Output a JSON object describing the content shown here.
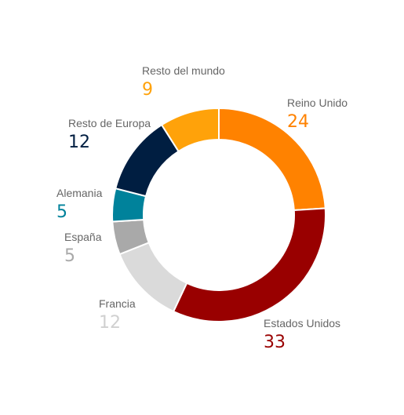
{
  "chart_data": {
    "type": "pie",
    "variant": "donut",
    "title": "",
    "slices": [
      {
        "label": "Reino Unido",
        "value": 24,
        "color": "#FF8200"
      },
      {
        "label": "Estados Unidos",
        "value": 33,
        "color": "#990000"
      },
      {
        "label": "Francia",
        "value": 12,
        "color": "#DADADA"
      },
      {
        "label": "España",
        "value": 5,
        "color": "#A9A9A9"
      },
      {
        "label": "Alemania",
        "value": 5,
        "color": "#00829B"
      },
      {
        "label": "Resto de Europa",
        "value": 12,
        "color": "#001E41"
      },
      {
        "label": "Resto del mundo",
        "value": 9,
        "color": "#FFA20A"
      }
    ],
    "value_text_colors": [
      "#FF8200",
      "#990000",
      "#D0D0D0",
      "#A9A9A9",
      "#00829B",
      "#001E41",
      "#FFA20A"
    ],
    "legend": "none",
    "labels": "outside"
  }
}
